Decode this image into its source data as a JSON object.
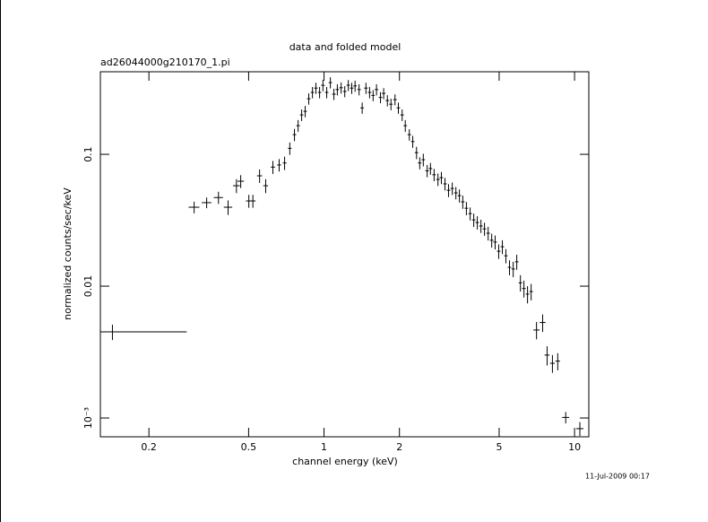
{
  "chart_data": {
    "type": "scatter",
    "title": "data and folded model",
    "subtitle": "ad26044000g210170_1.pi",
    "xlabel": "channel energy (keV)",
    "ylabel": "normalized counts/sec/keV",
    "footer": "11-Jul-2009 00:17",
    "xlog": true,
    "ylog": true,
    "xlim": [
      0.128,
      11.4
    ],
    "ylim": [
      0.00072,
      0.423
    ],
    "xticks": [
      0.2,
      0.5,
      1,
      2,
      5,
      10
    ],
    "yticks": [
      {
        "value": 0.001,
        "label": "10⁻³"
      },
      0.01,
      0.1
    ],
    "series": [
      {
        "color": "#000000",
        "x": [
          0.143,
          0.303,
          0.34,
          0.379,
          0.414,
          0.447,
          0.465,
          0.501,
          0.52,
          0.553,
          0.585,
          0.625,
          0.662,
          0.696,
          0.73,
          0.762,
          0.788,
          0.814,
          0.841,
          0.869,
          0.899,
          0.928,
          0.96,
          0.99,
          1.025,
          1.06,
          1.095,
          1.13,
          1.17,
          1.21,
          1.25,
          1.29,
          1.33,
          1.38,
          1.42,
          1.47,
          1.52,
          1.57,
          1.62,
          1.68,
          1.73,
          1.79,
          1.85,
          1.92,
          1.98,
          2.05,
          2.11,
          2.19,
          2.26,
          2.34,
          2.41,
          2.49,
          2.58,
          2.66,
          2.75,
          2.85,
          2.94,
          3.04,
          3.14,
          3.25,
          3.36,
          3.47,
          3.58,
          3.7,
          3.83,
          3.96,
          4.09,
          4.23,
          4.37,
          4.52,
          4.67,
          4.82,
          4.98,
          5.15,
          5.32,
          5.5,
          5.69,
          5.88,
          6.08,
          6.28,
          6.49,
          6.71,
          7.05,
          7.46,
          7.77,
          8.16,
          8.57,
          9.22,
          10.5
        ],
        "values": [
          0.0045,
          0.0397,
          0.043,
          0.047,
          0.0397,
          0.0578,
          0.0625,
          0.0443,
          0.0443,
          0.0687,
          0.0578,
          0.08,
          0.083,
          0.086,
          0.111,
          0.141,
          0.165,
          0.199,
          0.212,
          0.264,
          0.295,
          0.318,
          0.295,
          0.334,
          0.295,
          0.35,
          0.286,
          0.31,
          0.32,
          0.3,
          0.334,
          0.318,
          0.33,
          0.31,
          0.225,
          0.318,
          0.295,
          0.28,
          0.31,
          0.27,
          0.29,
          0.256,
          0.24,
          0.26,
          0.225,
          0.199,
          0.165,
          0.141,
          0.125,
          0.103,
          0.086,
          0.091,
          0.075,
          0.078,
          0.07,
          0.0645,
          0.0665,
          0.0597,
          0.0534,
          0.0551,
          0.051,
          0.0486,
          0.0436,
          0.039,
          0.0355,
          0.0318,
          0.0304,
          0.0286,
          0.0272,
          0.0252,
          0.0223,
          0.0216,
          0.0184,
          0.0199,
          0.017,
          0.0139,
          0.0135,
          0.0153,
          0.0106,
          0.0096,
          0.0087,
          0.0091,
          0.00465,
          0.0053,
          0.003,
          0.0026,
          0.0027,
          0.00101,
          0.00083
        ],
        "xerr": [
          0.14,
          0.015,
          0.015,
          0.016,
          0.016,
          0.014,
          0.014,
          0.013,
          0.013,
          0.013,
          0.013,
          0.012,
          0.012,
          0.012,
          0.012,
          0.012,
          0.013,
          0.013,
          0.013,
          0.014,
          0.014,
          0.015,
          0.015,
          0.016,
          0.016,
          0.017,
          0.018,
          0.018,
          0.019,
          0.019,
          0.02,
          0.021,
          0.021,
          0.022,
          0.023,
          0.024,
          0.024,
          0.025,
          0.026,
          0.027,
          0.028,
          0.029,
          0.03,
          0.031,
          0.032,
          0.033,
          0.034,
          0.035,
          0.036,
          0.037,
          0.039,
          0.04,
          0.041,
          0.043,
          0.044,
          0.046,
          0.047,
          0.049,
          0.05,
          0.052,
          0.054,
          0.056,
          0.057,
          0.059,
          0.061,
          0.063,
          0.065,
          0.068,
          0.07,
          0.072,
          0.075,
          0.077,
          0.08,
          0.082,
          0.085,
          0.088,
          0.091,
          0.094,
          0.097,
          0.1,
          0.104,
          0.107,
          0.2,
          0.2,
          0.18,
          0.18,
          0.18,
          0.3,
          0.35
        ],
        "yerr": [
          0.0006,
          0.004,
          0.004,
          0.005,
          0.005,
          0.007,
          0.007,
          0.005,
          0.005,
          0.008,
          0.007,
          0.009,
          0.009,
          0.01,
          0.012,
          0.015,
          0.017,
          0.02,
          0.021,
          0.026,
          0.029,
          0.031,
          0.029,
          0.033,
          0.029,
          0.034,
          0.028,
          0.03,
          0.031,
          0.029,
          0.032,
          0.031,
          0.032,
          0.03,
          0.022,
          0.031,
          0.029,
          0.027,
          0.03,
          0.026,
          0.028,
          0.025,
          0.024,
          0.025,
          0.022,
          0.02,
          0.017,
          0.014,
          0.013,
          0.011,
          0.009,
          0.01,
          0.008,
          0.008,
          0.0075,
          0.007,
          0.007,
          0.0065,
          0.006,
          0.006,
          0.0055,
          0.0055,
          0.005,
          0.0045,
          0.004,
          0.0037,
          0.0035,
          0.0033,
          0.0031,
          0.003,
          0.0027,
          0.0026,
          0.0023,
          0.0024,
          0.0021,
          0.0018,
          0.0018,
          0.002,
          0.0015,
          0.0014,
          0.0013,
          0.0013,
          0.0007,
          0.0008,
          0.0005,
          0.0004,
          0.0004,
          0.0001,
          0.0001
        ]
      }
    ]
  }
}
